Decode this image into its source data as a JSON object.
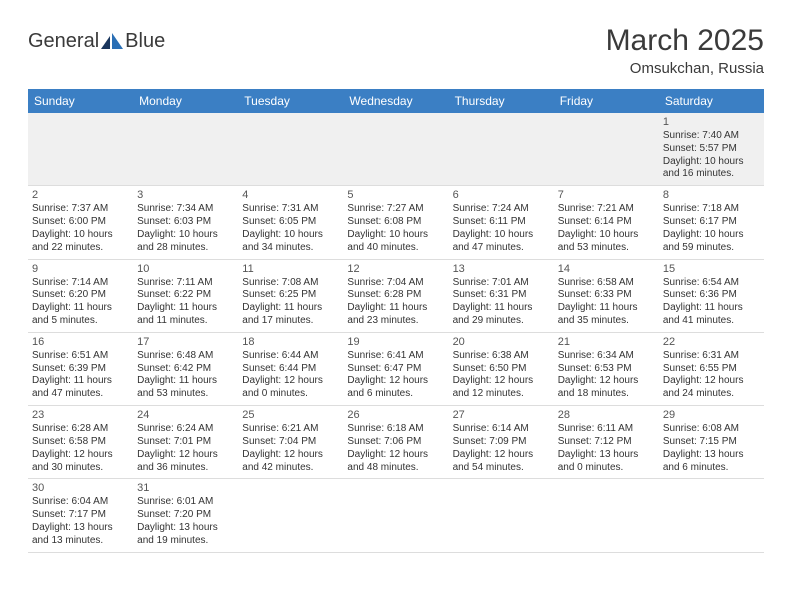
{
  "logo": {
    "text1": "General",
    "text2": "Blue"
  },
  "title": "March 2025",
  "location": "Omsukchan, Russia",
  "colors": {
    "header_bg": "#3b7fc4",
    "header_text": "#ffffff",
    "page_bg": "#ffffff",
    "first_row_bg": "#f0f0f0",
    "cell_text": "#333333",
    "border": "#dddddd",
    "logo_blue": "#2a6fb5"
  },
  "weekdays": [
    "Sunday",
    "Monday",
    "Tuesday",
    "Wednesday",
    "Thursday",
    "Friday",
    "Saturday"
  ],
  "weeks": [
    [
      {
        "day": "",
        "lines": []
      },
      {
        "day": "",
        "lines": []
      },
      {
        "day": "",
        "lines": []
      },
      {
        "day": "",
        "lines": []
      },
      {
        "day": "",
        "lines": []
      },
      {
        "day": "",
        "lines": []
      },
      {
        "day": "1",
        "lines": [
          "Sunrise: 7:40 AM",
          "Sunset: 5:57 PM",
          "Daylight: 10 hours",
          "and 16 minutes."
        ]
      }
    ],
    [
      {
        "day": "2",
        "lines": [
          "Sunrise: 7:37 AM",
          "Sunset: 6:00 PM",
          "Daylight: 10 hours",
          "and 22 minutes."
        ]
      },
      {
        "day": "3",
        "lines": [
          "Sunrise: 7:34 AM",
          "Sunset: 6:03 PM",
          "Daylight: 10 hours",
          "and 28 minutes."
        ]
      },
      {
        "day": "4",
        "lines": [
          "Sunrise: 7:31 AM",
          "Sunset: 6:05 PM",
          "Daylight: 10 hours",
          "and 34 minutes."
        ]
      },
      {
        "day": "5",
        "lines": [
          "Sunrise: 7:27 AM",
          "Sunset: 6:08 PM",
          "Daylight: 10 hours",
          "and 40 minutes."
        ]
      },
      {
        "day": "6",
        "lines": [
          "Sunrise: 7:24 AM",
          "Sunset: 6:11 PM",
          "Daylight: 10 hours",
          "and 47 minutes."
        ]
      },
      {
        "day": "7",
        "lines": [
          "Sunrise: 7:21 AM",
          "Sunset: 6:14 PM",
          "Daylight: 10 hours",
          "and 53 minutes."
        ]
      },
      {
        "day": "8",
        "lines": [
          "Sunrise: 7:18 AM",
          "Sunset: 6:17 PM",
          "Daylight: 10 hours",
          "and 59 minutes."
        ]
      }
    ],
    [
      {
        "day": "9",
        "lines": [
          "Sunrise: 7:14 AM",
          "Sunset: 6:20 PM",
          "Daylight: 11 hours",
          "and 5 minutes."
        ]
      },
      {
        "day": "10",
        "lines": [
          "Sunrise: 7:11 AM",
          "Sunset: 6:22 PM",
          "Daylight: 11 hours",
          "and 11 minutes."
        ]
      },
      {
        "day": "11",
        "lines": [
          "Sunrise: 7:08 AM",
          "Sunset: 6:25 PM",
          "Daylight: 11 hours",
          "and 17 minutes."
        ]
      },
      {
        "day": "12",
        "lines": [
          "Sunrise: 7:04 AM",
          "Sunset: 6:28 PM",
          "Daylight: 11 hours",
          "and 23 minutes."
        ]
      },
      {
        "day": "13",
        "lines": [
          "Sunrise: 7:01 AM",
          "Sunset: 6:31 PM",
          "Daylight: 11 hours",
          "and 29 minutes."
        ]
      },
      {
        "day": "14",
        "lines": [
          "Sunrise: 6:58 AM",
          "Sunset: 6:33 PM",
          "Daylight: 11 hours",
          "and 35 minutes."
        ]
      },
      {
        "day": "15",
        "lines": [
          "Sunrise: 6:54 AM",
          "Sunset: 6:36 PM",
          "Daylight: 11 hours",
          "and 41 minutes."
        ]
      }
    ],
    [
      {
        "day": "16",
        "lines": [
          "Sunrise: 6:51 AM",
          "Sunset: 6:39 PM",
          "Daylight: 11 hours",
          "and 47 minutes."
        ]
      },
      {
        "day": "17",
        "lines": [
          "Sunrise: 6:48 AM",
          "Sunset: 6:42 PM",
          "Daylight: 11 hours",
          "and 53 minutes."
        ]
      },
      {
        "day": "18",
        "lines": [
          "Sunrise: 6:44 AM",
          "Sunset: 6:44 PM",
          "Daylight: 12 hours",
          "and 0 minutes."
        ]
      },
      {
        "day": "19",
        "lines": [
          "Sunrise: 6:41 AM",
          "Sunset: 6:47 PM",
          "Daylight: 12 hours",
          "and 6 minutes."
        ]
      },
      {
        "day": "20",
        "lines": [
          "Sunrise: 6:38 AM",
          "Sunset: 6:50 PM",
          "Daylight: 12 hours",
          "and 12 minutes."
        ]
      },
      {
        "day": "21",
        "lines": [
          "Sunrise: 6:34 AM",
          "Sunset: 6:53 PM",
          "Daylight: 12 hours",
          "and 18 minutes."
        ]
      },
      {
        "day": "22",
        "lines": [
          "Sunrise: 6:31 AM",
          "Sunset: 6:55 PM",
          "Daylight: 12 hours",
          "and 24 minutes."
        ]
      }
    ],
    [
      {
        "day": "23",
        "lines": [
          "Sunrise: 6:28 AM",
          "Sunset: 6:58 PM",
          "Daylight: 12 hours",
          "and 30 minutes."
        ]
      },
      {
        "day": "24",
        "lines": [
          "Sunrise: 6:24 AM",
          "Sunset: 7:01 PM",
          "Daylight: 12 hours",
          "and 36 minutes."
        ]
      },
      {
        "day": "25",
        "lines": [
          "Sunrise: 6:21 AM",
          "Sunset: 7:04 PM",
          "Daylight: 12 hours",
          "and 42 minutes."
        ]
      },
      {
        "day": "26",
        "lines": [
          "Sunrise: 6:18 AM",
          "Sunset: 7:06 PM",
          "Daylight: 12 hours",
          "and 48 minutes."
        ]
      },
      {
        "day": "27",
        "lines": [
          "Sunrise: 6:14 AM",
          "Sunset: 7:09 PM",
          "Daylight: 12 hours",
          "and 54 minutes."
        ]
      },
      {
        "day": "28",
        "lines": [
          "Sunrise: 6:11 AM",
          "Sunset: 7:12 PM",
          "Daylight: 13 hours",
          "and 0 minutes."
        ]
      },
      {
        "day": "29",
        "lines": [
          "Sunrise: 6:08 AM",
          "Sunset: 7:15 PM",
          "Daylight: 13 hours",
          "and 6 minutes."
        ]
      }
    ],
    [
      {
        "day": "30",
        "lines": [
          "Sunrise: 6:04 AM",
          "Sunset: 7:17 PM",
          "Daylight: 13 hours",
          "and 13 minutes."
        ]
      },
      {
        "day": "31",
        "lines": [
          "Sunrise: 6:01 AM",
          "Sunset: 7:20 PM",
          "Daylight: 13 hours",
          "and 19 minutes."
        ]
      },
      {
        "day": "",
        "lines": []
      },
      {
        "day": "",
        "lines": []
      },
      {
        "day": "",
        "lines": []
      },
      {
        "day": "",
        "lines": []
      },
      {
        "day": "",
        "lines": []
      }
    ]
  ]
}
